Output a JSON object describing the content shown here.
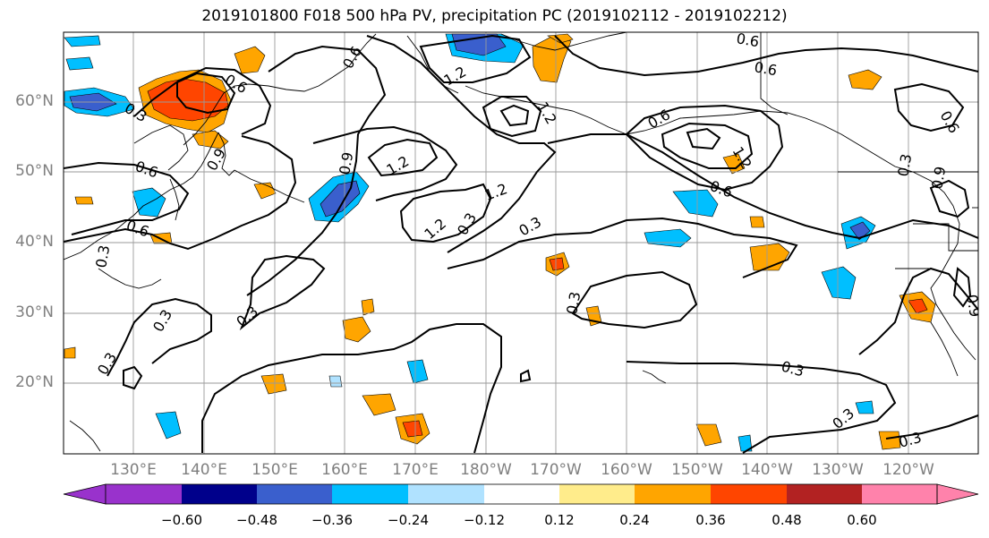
{
  "title": "2019101800 F018 500 hPa PV, precipitation PC (2019102112 - 2019102212)",
  "lat_labels": [
    "60°N",
    "50°N",
    "40°N",
    "30°N",
    "20°N"
  ],
  "lon_labels": [
    "130°E",
    "140°E",
    "150°E",
    "160°E",
    "170°E",
    "180°W",
    "170°W",
    "160°W",
    "150°W",
    "140°W",
    "130°W",
    "120°W"
  ],
  "colorbar": {
    "ticks": [
      "−0.60",
      "−0.48",
      "−0.36",
      "−0.24",
      "−0.12",
      "0.12",
      "0.24",
      "0.36",
      "0.48",
      "0.60"
    ],
    "colors": [
      "#9932cc",
      "#00008b",
      "#3a5fcd",
      "#00bfff",
      "#b0e2ff",
      "#ffffff",
      "#ffec8b",
      "#ffa500",
      "#ff4500",
      "#b22222",
      "#ff82ab"
    ]
  },
  "contour_labels": [
    "0.6",
    "0.3",
    "1.2",
    "0.9",
    "0.6",
    "0.3",
    "0.6",
    "0.6",
    "0.3",
    "1.2",
    "1.2",
    "0.9",
    "0.3",
    "1.2",
    "0.6",
    "0.3",
    "1.2",
    "0.6",
    "1.2",
    "0.6",
    "0.3",
    "0.3",
    "0.3",
    "0.3",
    "0.3",
    "0.3",
    "0.3",
    "0.6",
    "0.9",
    "0.6",
    "0.9"
  ],
  "colors": {
    "land_line": "#000000",
    "grid": "#9a9a9a",
    "contour": "#000000",
    "axis_label": "#7f7f7f"
  }
}
